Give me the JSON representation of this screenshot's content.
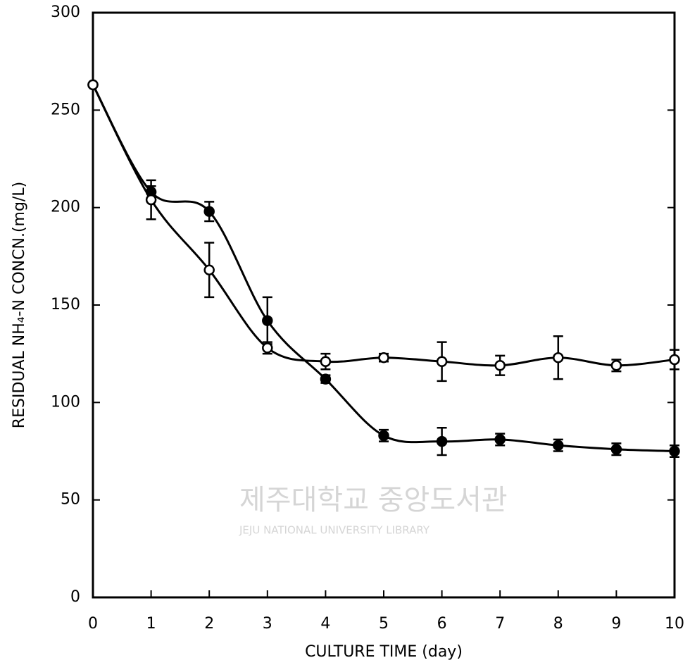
{
  "chart_data": {
    "type": "line",
    "xlabel": "CULTURE TIME (day)",
    "ylabel": "RESIDUAL NH₄-N CONCN.(mg/L)",
    "watermark": [
      "제주대학교 중앙도서관",
      "JEJU NATIONAL UNIVERSITY LIBRARY"
    ],
    "x": [
      0,
      1,
      2,
      3,
      4,
      5,
      6,
      7,
      8,
      9,
      10
    ],
    "series": [
      {
        "marker": "filled",
        "color": "#000000",
        "values": [
          263,
          208,
          198,
          142,
          112,
          83,
          80,
          81,
          78,
          76,
          75
        ],
        "errors": [
          0,
          3,
          5,
          12,
          2,
          3,
          7,
          3,
          3,
          3,
          3
        ]
      },
      {
        "marker": "open",
        "color": "#000000",
        "values": [
          263,
          204,
          168,
          128,
          121,
          123,
          121,
          119,
          123,
          119,
          122
        ],
        "errors": [
          0,
          10,
          14,
          3,
          4,
          2,
          10,
          5,
          11,
          3,
          5
        ]
      }
    ],
    "xlim": [
      0,
      10
    ],
    "xticks": [
      0,
      1,
      2,
      3,
      4,
      5,
      6,
      7,
      8,
      9,
      10
    ],
    "ylim": [
      0,
      300
    ],
    "yticks": [
      0,
      50,
      100,
      150,
      200,
      250,
      300
    ]
  }
}
